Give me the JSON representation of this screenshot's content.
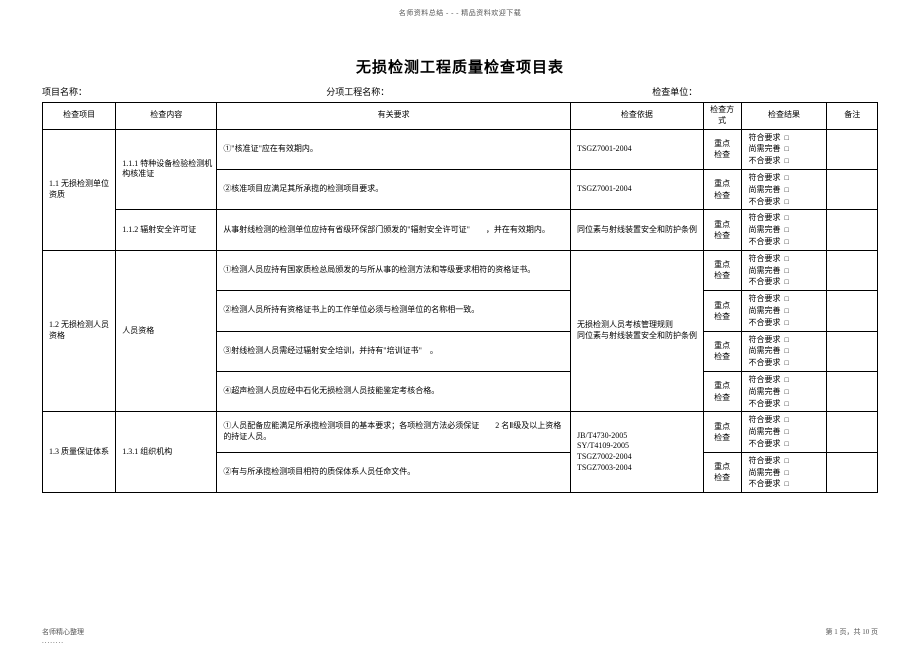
{
  "page": {
    "top_header": "名师资料总结 - - - 精品资料欢迎下载",
    "title": "无损检测工程质量检查项目表",
    "project_name_label": "项目名称：",
    "sub_project_label": "分项工程名称：",
    "check_unit_label": "检查单位：",
    "footer_left_line1": "名师精心整理",
    "footer_left_line2": "........",
    "footer_right": "第 1 页，共 10 页"
  },
  "headers": {
    "check_item": "检查项目",
    "check_content": "检查内容",
    "requirement": "有关要求",
    "basis": "检查依据",
    "method": "检查方式",
    "result": "检查结果",
    "remark": "备注"
  },
  "method_text": "重点检查",
  "result_options": {
    "pass": "符合要求",
    "improve": "尚需完善",
    "fail": "不合要求"
  },
  "group1": {
    "item": "1.1 无损检测单位资质",
    "content1": "1.1.1 特种设备检验检测机构核准证",
    "req1": "①\"核准证\"应在有效期内。",
    "req2": "②核准项目应满足其所承揽的检测项目要求。",
    "basis1": "TSGZ7001-2004",
    "basis2": "TSGZ7001-2004",
    "content2": "1.1.2 辐射安全许可证",
    "req3": "从事射线检测的检测单位应持有省级环保部门颁发的\"辐射安全许可证\"　　，并在有效期内。",
    "basis3": "同位素与射线装置安全和防护条例"
  },
  "group2": {
    "item": "1.2 无损检测人员资格",
    "content": "人员资格",
    "req1": "①检测人员应持有国家质检总局颁发的与所从事的检测方法和等级要求相符的资格证书。",
    "req2": "②检测人员所持有资格证书上的工作单位必须与检测单位的名称相一致。",
    "req3": "③射线检测人员需经过辐射安全培训，并持有\"培训证书\"　。",
    "req4": "④超声检测人员应经中石化无损检测人员技能鉴定考核合格。",
    "basis": "无损检测人员考核管理规则\n同位素与射线装置安全和防护条例"
  },
  "group3": {
    "item": "1.3 质量保证体系",
    "content": "1.3.1 组织机构",
    "req1": "①人员配备应能满足所承揽检测项目的基本要求；各项检测方法必须保证　　2 名Ⅱ级及以上资格的持证人员。",
    "req2": "②有与所承揽检测项目相符的质保体系人员任命文件。",
    "basis": "JB/T4730-2005\nSY/T4109-2005\nTSGZ7002-2004\nTSGZ7003-2004"
  }
}
